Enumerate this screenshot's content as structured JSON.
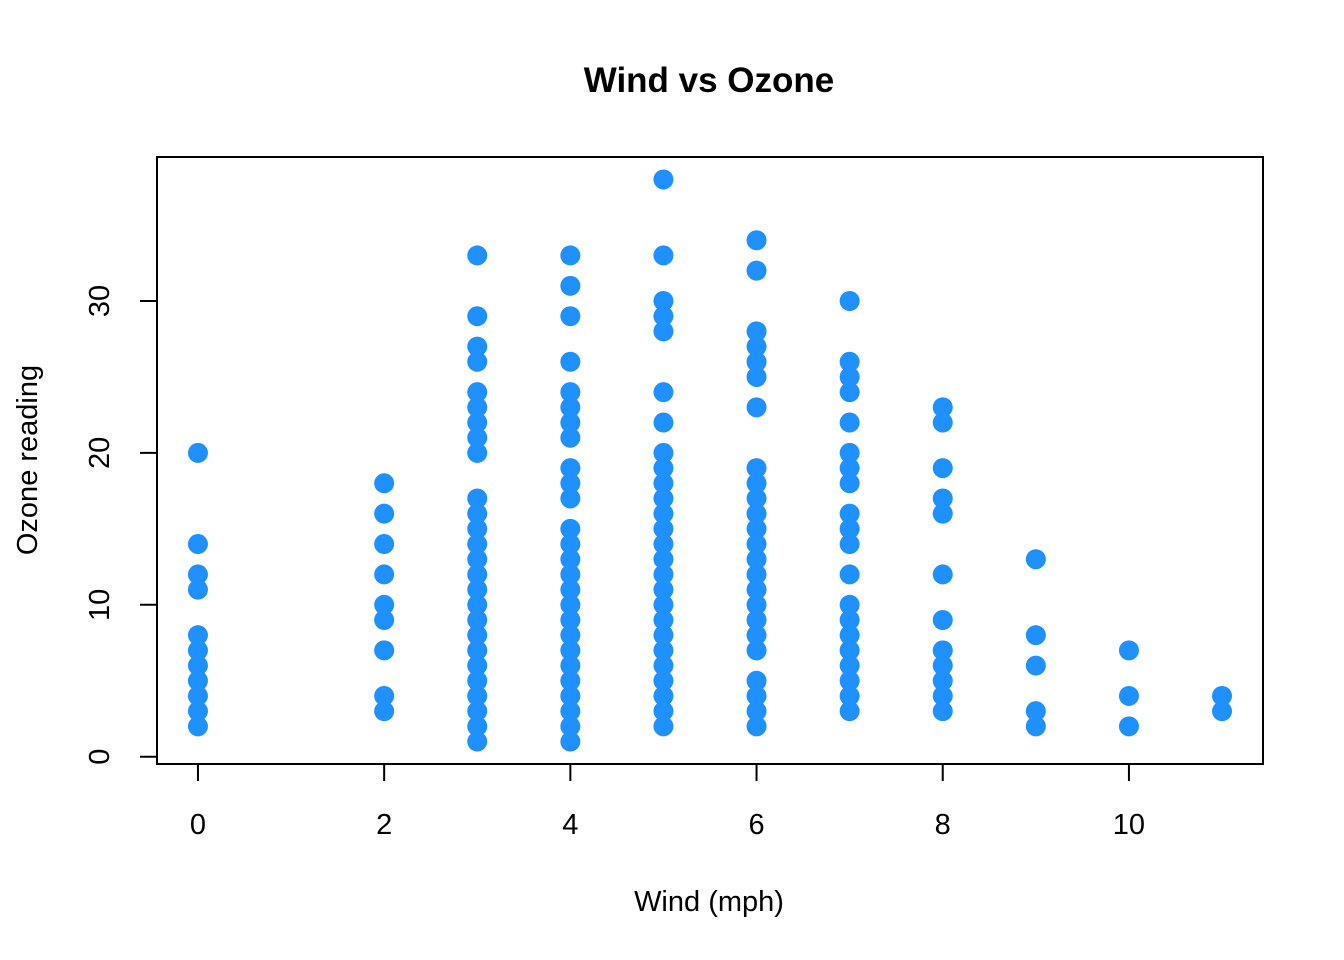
{
  "chart_data": {
    "type": "scatter",
    "title": "Wind vs Ozone",
    "xlabel": "Wind (mph)",
    "ylabel": "Ozone reading",
    "xlim": [
      -0.44,
      11.44
    ],
    "ylim": [
      -0.48,
      39.48
    ],
    "xticks": [
      0,
      2,
      4,
      6,
      8,
      10
    ],
    "yticks": [
      0,
      10,
      20,
      30
    ],
    "point_color": "#1E90FF",
    "grid": false,
    "points": [
      {
        "x": 0,
        "y": 20
      },
      {
        "x": 0,
        "y": 14
      },
      {
        "x": 0,
        "y": 12
      },
      {
        "x": 0,
        "y": 11
      },
      {
        "x": 0,
        "y": 8
      },
      {
        "x": 0,
        "y": 7
      },
      {
        "x": 0,
        "y": 6
      },
      {
        "x": 0,
        "y": 5
      },
      {
        "x": 0,
        "y": 4
      },
      {
        "x": 0,
        "y": 3
      },
      {
        "x": 0,
        "y": 2
      },
      {
        "x": 2,
        "y": 18
      },
      {
        "x": 2,
        "y": 16
      },
      {
        "x": 2,
        "y": 14
      },
      {
        "x": 2,
        "y": 12
      },
      {
        "x": 2,
        "y": 10
      },
      {
        "x": 2,
        "y": 9
      },
      {
        "x": 2,
        "y": 7
      },
      {
        "x": 2,
        "y": 4
      },
      {
        "x": 2,
        "y": 3
      },
      {
        "x": 3,
        "y": 33
      },
      {
        "x": 3,
        "y": 29
      },
      {
        "x": 3,
        "y": 27
      },
      {
        "x": 3,
        "y": 26
      },
      {
        "x": 3,
        "y": 24
      },
      {
        "x": 3,
        "y": 23
      },
      {
        "x": 3,
        "y": 22
      },
      {
        "x": 3,
        "y": 21
      },
      {
        "x": 3,
        "y": 20
      },
      {
        "x": 3,
        "y": 17
      },
      {
        "x": 3,
        "y": 16
      },
      {
        "x": 3,
        "y": 15
      },
      {
        "x": 3,
        "y": 14
      },
      {
        "x": 3,
        "y": 13
      },
      {
        "x": 3,
        "y": 12
      },
      {
        "x": 3,
        "y": 11
      },
      {
        "x": 3,
        "y": 10
      },
      {
        "x": 3,
        "y": 9
      },
      {
        "x": 3,
        "y": 8
      },
      {
        "x": 3,
        "y": 7
      },
      {
        "x": 3,
        "y": 6
      },
      {
        "x": 3,
        "y": 5
      },
      {
        "x": 3,
        "y": 4
      },
      {
        "x": 3,
        "y": 3
      },
      {
        "x": 3,
        "y": 2
      },
      {
        "x": 3,
        "y": 1
      },
      {
        "x": 4,
        "y": 33
      },
      {
        "x": 4,
        "y": 31
      },
      {
        "x": 4,
        "y": 29
      },
      {
        "x": 4,
        "y": 26
      },
      {
        "x": 4,
        "y": 24
      },
      {
        "x": 4,
        "y": 23
      },
      {
        "x": 4,
        "y": 22
      },
      {
        "x": 4,
        "y": 21
      },
      {
        "x": 4,
        "y": 19
      },
      {
        "x": 4,
        "y": 18
      },
      {
        "x": 4,
        "y": 17
      },
      {
        "x": 4,
        "y": 15
      },
      {
        "x": 4,
        "y": 14
      },
      {
        "x": 4,
        "y": 13
      },
      {
        "x": 4,
        "y": 12
      },
      {
        "x": 4,
        "y": 11
      },
      {
        "x": 4,
        "y": 10
      },
      {
        "x": 4,
        "y": 9
      },
      {
        "x": 4,
        "y": 8
      },
      {
        "x": 4,
        "y": 7
      },
      {
        "x": 4,
        "y": 6
      },
      {
        "x": 4,
        "y": 5
      },
      {
        "x": 4,
        "y": 4
      },
      {
        "x": 4,
        "y": 3
      },
      {
        "x": 4,
        "y": 2
      },
      {
        "x": 4,
        "y": 1
      },
      {
        "x": 5,
        "y": 38
      },
      {
        "x": 5,
        "y": 33
      },
      {
        "x": 5,
        "y": 30
      },
      {
        "x": 5,
        "y": 29
      },
      {
        "x": 5,
        "y": 28
      },
      {
        "x": 5,
        "y": 24
      },
      {
        "x": 5,
        "y": 22
      },
      {
        "x": 5,
        "y": 20
      },
      {
        "x": 5,
        "y": 19
      },
      {
        "x": 5,
        "y": 18
      },
      {
        "x": 5,
        "y": 17
      },
      {
        "x": 5,
        "y": 16
      },
      {
        "x": 5,
        "y": 15
      },
      {
        "x": 5,
        "y": 14
      },
      {
        "x": 5,
        "y": 13
      },
      {
        "x": 5,
        "y": 12
      },
      {
        "x": 5,
        "y": 11
      },
      {
        "x": 5,
        "y": 10
      },
      {
        "x": 5,
        "y": 9
      },
      {
        "x": 5,
        "y": 8
      },
      {
        "x": 5,
        "y": 7
      },
      {
        "x": 5,
        "y": 6
      },
      {
        "x": 5,
        "y": 5
      },
      {
        "x": 5,
        "y": 4
      },
      {
        "x": 5,
        "y": 3
      },
      {
        "x": 5,
        "y": 2
      },
      {
        "x": 6,
        "y": 34
      },
      {
        "x": 6,
        "y": 32
      },
      {
        "x": 6,
        "y": 28
      },
      {
        "x": 6,
        "y": 27
      },
      {
        "x": 6,
        "y": 26
      },
      {
        "x": 6,
        "y": 25
      },
      {
        "x": 6,
        "y": 23
      },
      {
        "x": 6,
        "y": 19
      },
      {
        "x": 6,
        "y": 18
      },
      {
        "x": 6,
        "y": 17
      },
      {
        "x": 6,
        "y": 16
      },
      {
        "x": 6,
        "y": 15
      },
      {
        "x": 6,
        "y": 14
      },
      {
        "x": 6,
        "y": 13
      },
      {
        "x": 6,
        "y": 12
      },
      {
        "x": 6,
        "y": 11
      },
      {
        "x": 6,
        "y": 10
      },
      {
        "x": 6,
        "y": 9
      },
      {
        "x": 6,
        "y": 8
      },
      {
        "x": 6,
        "y": 7
      },
      {
        "x": 6,
        "y": 5
      },
      {
        "x": 6,
        "y": 4
      },
      {
        "x": 6,
        "y": 3
      },
      {
        "x": 6,
        "y": 2
      },
      {
        "x": 7,
        "y": 30
      },
      {
        "x": 7,
        "y": 26
      },
      {
        "x": 7,
        "y": 25
      },
      {
        "x": 7,
        "y": 24
      },
      {
        "x": 7,
        "y": 22
      },
      {
        "x": 7,
        "y": 20
      },
      {
        "x": 7,
        "y": 19
      },
      {
        "x": 7,
        "y": 18
      },
      {
        "x": 7,
        "y": 16
      },
      {
        "x": 7,
        "y": 15
      },
      {
        "x": 7,
        "y": 14
      },
      {
        "x": 7,
        "y": 12
      },
      {
        "x": 7,
        "y": 10
      },
      {
        "x": 7,
        "y": 9
      },
      {
        "x": 7,
        "y": 8
      },
      {
        "x": 7,
        "y": 7
      },
      {
        "x": 7,
        "y": 6
      },
      {
        "x": 7,
        "y": 5
      },
      {
        "x": 7,
        "y": 4
      },
      {
        "x": 7,
        "y": 3
      },
      {
        "x": 8,
        "y": 23
      },
      {
        "x": 8,
        "y": 22
      },
      {
        "x": 8,
        "y": 19
      },
      {
        "x": 8,
        "y": 17
      },
      {
        "x": 8,
        "y": 16
      },
      {
        "x": 8,
        "y": 12
      },
      {
        "x": 8,
        "y": 9
      },
      {
        "x": 8,
        "y": 7
      },
      {
        "x": 8,
        "y": 6
      },
      {
        "x": 8,
        "y": 5
      },
      {
        "x": 8,
        "y": 4
      },
      {
        "x": 8,
        "y": 3
      },
      {
        "x": 9,
        "y": 13
      },
      {
        "x": 9,
        "y": 8
      },
      {
        "x": 9,
        "y": 6
      },
      {
        "x": 9,
        "y": 3
      },
      {
        "x": 9,
        "y": 2
      },
      {
        "x": 10,
        "y": 7
      },
      {
        "x": 10,
        "y": 4
      },
      {
        "x": 10,
        "y": 2
      },
      {
        "x": 11,
        "y": 4
      },
      {
        "x": 11,
        "y": 3
      }
    ]
  }
}
